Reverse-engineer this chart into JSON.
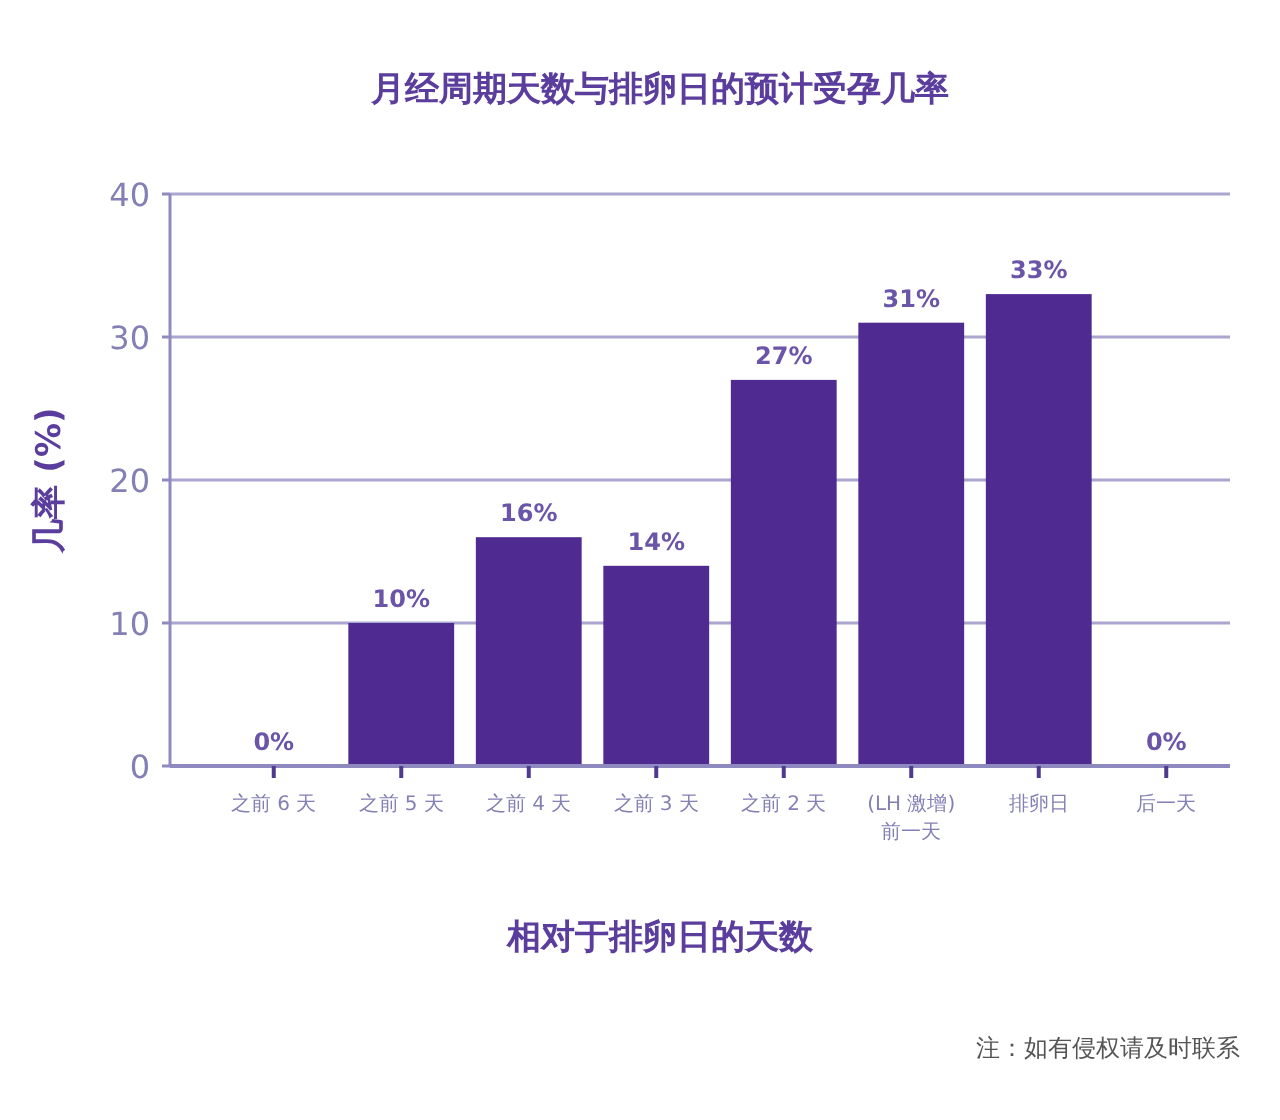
{
  "chart_data": {
    "type": "bar",
    "title": "月经周期天数与排卵日的预计受孕几率",
    "xlabel": "相对于排卵日的天数",
    "ylabel": "几率 (%)",
    "categories": [
      "之前 6 天",
      "之前 5 天",
      "之前 4 天",
      "之前 3 天",
      "之前 2 天",
      "(LH 激增)\n前一天",
      "排卵日",
      "后一天"
    ],
    "values": [
      0,
      10,
      16,
      14,
      27,
      31,
      33,
      0
    ],
    "value_labels": [
      "0%",
      "10%",
      "16%",
      "14%",
      "27%",
      "31%",
      "33%",
      "0%"
    ],
    "color": "#4f2a91",
    "ylim": [
      0,
      40
    ],
    "yticks": [
      0,
      10,
      20,
      30,
      40
    ],
    "grid": "y",
    "annotations": [
      "注：如有侵权请及时联系"
    ]
  }
}
